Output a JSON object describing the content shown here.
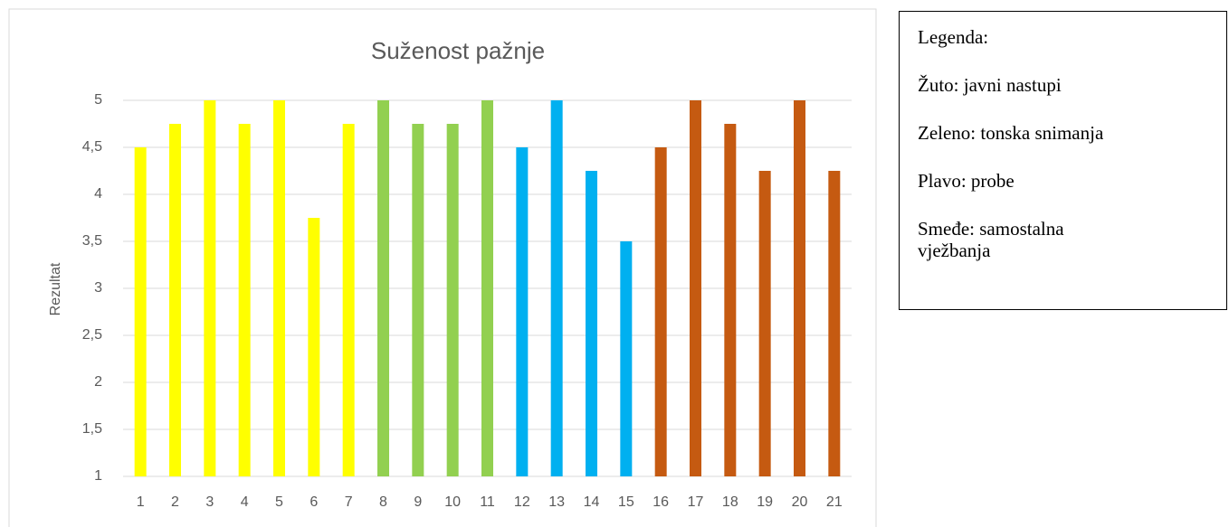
{
  "chart_data": {
    "type": "bar",
    "title": "Suženost pažnje",
    "y_label": "Rezultat",
    "categories": [
      "1",
      "2",
      "3",
      "4",
      "5",
      "6",
      "7",
      "8",
      "9",
      "10",
      "11",
      "12",
      "13",
      "14",
      "15",
      "16",
      "17",
      "18",
      "19",
      "20",
      "21"
    ],
    "values": [
      4.5,
      4.75,
      5,
      4.75,
      5,
      3.75,
      4.75,
      5,
      4.75,
      4.75,
      5,
      4.5,
      5,
      4.25,
      3.5,
      4.5,
      5,
      4.75,
      4.25,
      5,
      4.25
    ],
    "colors": [
      "#ffff00",
      "#ffff00",
      "#ffff00",
      "#ffff00",
      "#ffff00",
      "#ffff00",
      "#ffff00",
      "#92d050",
      "#92d050",
      "#92d050",
      "#92d050",
      "#00b0f0",
      "#00b0f0",
      "#00b0f0",
      "#00b0f0",
      "#c55a11",
      "#c55a11",
      "#c55a11",
      "#c55a11",
      "#c55a11",
      "#c55a11"
    ],
    "ylim": [
      1,
      5
    ],
    "yticks": [
      1,
      {
        "value": 1.5,
        "label": "1,5"
      },
      2,
      {
        "value": 2.5,
        "label": "2,5"
      },
      3,
      {
        "value": 3.5,
        "label": "3,5"
      },
      4,
      {
        "value": 4.5,
        "label": "4,5"
      },
      5
    ],
    "grid": true
  },
  "legend_box": {
    "title": "Legenda:",
    "items": [
      "Žuto: javni nastupi",
      "Zeleno: tonska snimanja",
      "Plavo: probe",
      "Smeđe: samostalna vježbanja"
    ]
  }
}
